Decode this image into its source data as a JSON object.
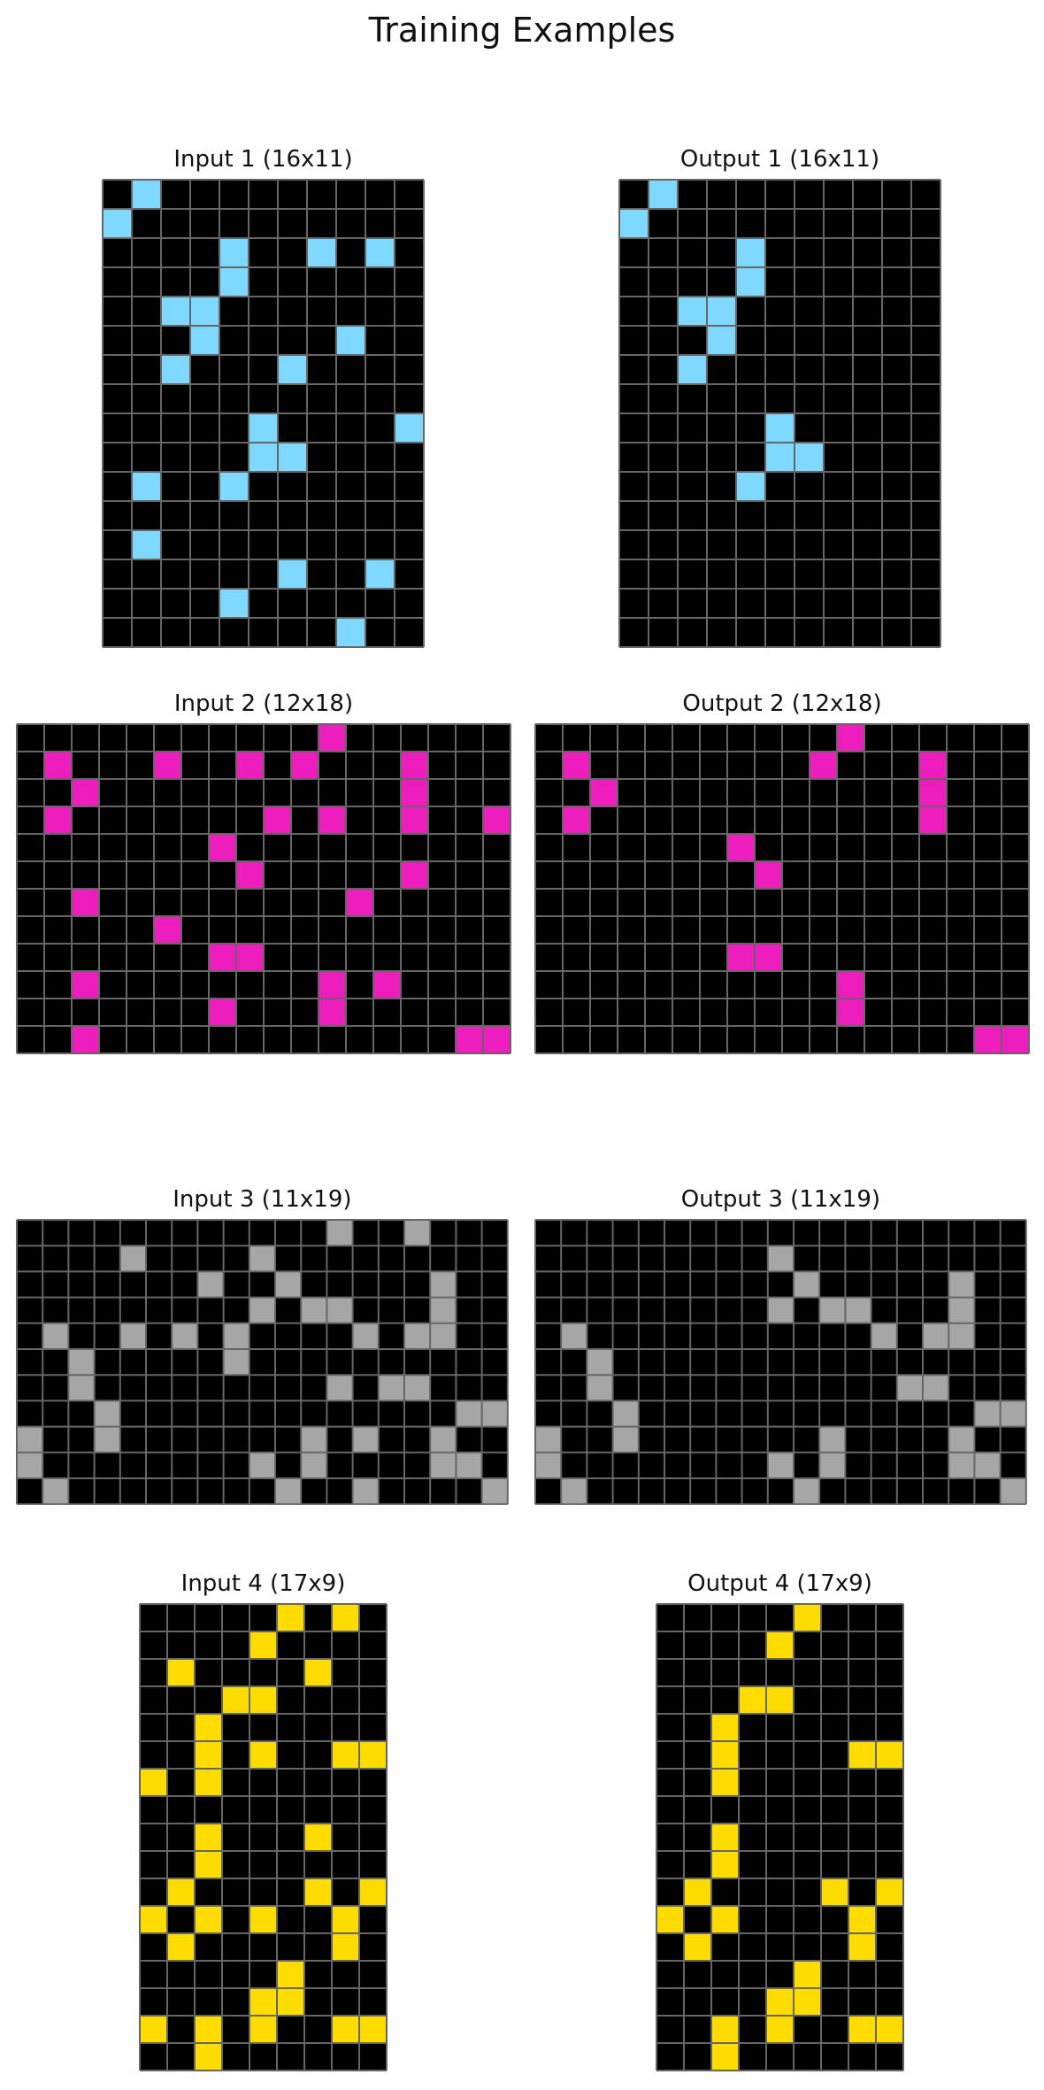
{
  "title": "Training Examples",
  "colors": {
    "background": "#000000",
    "gridline": "#666666",
    "cyan": "#7fd8ff",
    "magenta": "#ee1ebe",
    "gray": "#a6a6a6",
    "yellow": "#ffdc00"
  },
  "examples": [
    {
      "input": {
        "title": "Input 1 (16x11)",
        "rows": 16,
        "cols": 11,
        "color": "cyan",
        "cells": [
          [
            0,
            1
          ],
          [
            1,
            0
          ],
          [
            2,
            4
          ],
          [
            2,
            7
          ],
          [
            2,
            9
          ],
          [
            3,
            4
          ],
          [
            4,
            2
          ],
          [
            4,
            3
          ],
          [
            5,
            3
          ],
          [
            5,
            8
          ],
          [
            6,
            2
          ],
          [
            6,
            6
          ],
          [
            8,
            5
          ],
          [
            8,
            10
          ],
          [
            9,
            5
          ],
          [
            9,
            6
          ],
          [
            10,
            1
          ],
          [
            10,
            4
          ],
          [
            12,
            1
          ],
          [
            13,
            6
          ],
          [
            13,
            9
          ],
          [
            14,
            4
          ],
          [
            15,
            8
          ]
        ]
      },
      "output": {
        "title": "Output 1 (16x11)",
        "rows": 16,
        "cols": 11,
        "color": "cyan",
        "cells": [
          [
            0,
            1
          ],
          [
            1,
            0
          ],
          [
            2,
            4
          ],
          [
            3,
            4
          ],
          [
            4,
            2
          ],
          [
            4,
            3
          ],
          [
            5,
            3
          ],
          [
            6,
            2
          ],
          [
            8,
            5
          ],
          [
            9,
            5
          ],
          [
            9,
            6
          ],
          [
            10,
            4
          ]
        ]
      }
    },
    {
      "input": {
        "title": "Input 2 (12x18)",
        "rows": 12,
        "cols": 18,
        "color": "magenta",
        "cells": [
          [
            0,
            11
          ],
          [
            1,
            1
          ],
          [
            1,
            5
          ],
          [
            1,
            8
          ],
          [
            1,
            10
          ],
          [
            1,
            14
          ],
          [
            2,
            2
          ],
          [
            2,
            14
          ],
          [
            3,
            1
          ],
          [
            3,
            9
          ],
          [
            3,
            11
          ],
          [
            3,
            14
          ],
          [
            3,
            17
          ],
          [
            4,
            7
          ],
          [
            5,
            8
          ],
          [
            5,
            14
          ],
          [
            6,
            2
          ],
          [
            6,
            12
          ],
          [
            7,
            5
          ],
          [
            8,
            7
          ],
          [
            8,
            8
          ],
          [
            9,
            2
          ],
          [
            9,
            11
          ],
          [
            9,
            13
          ],
          [
            10,
            7
          ],
          [
            10,
            11
          ],
          [
            11,
            2
          ],
          [
            11,
            16
          ],
          [
            11,
            17
          ]
        ]
      },
      "output": {
        "title": "Output 2 (12x18)",
        "rows": 12,
        "cols": 18,
        "color": "magenta",
        "cells": [
          [
            0,
            11
          ],
          [
            1,
            1
          ],
          [
            1,
            10
          ],
          [
            1,
            14
          ],
          [
            2,
            2
          ],
          [
            2,
            14
          ],
          [
            3,
            1
          ],
          [
            3,
            14
          ],
          [
            4,
            7
          ],
          [
            5,
            8
          ],
          [
            8,
            7
          ],
          [
            8,
            8
          ],
          [
            9,
            11
          ],
          [
            10,
            11
          ],
          [
            11,
            16
          ],
          [
            11,
            17
          ]
        ]
      }
    },
    {
      "input": {
        "title": "Input 3 (11x19)",
        "rows": 11,
        "cols": 19,
        "color": "gray",
        "cells": [
          [
            0,
            12
          ],
          [
            0,
            15
          ],
          [
            1,
            4
          ],
          [
            1,
            9
          ],
          [
            2,
            7
          ],
          [
            2,
            10
          ],
          [
            2,
            16
          ],
          [
            3,
            9
          ],
          [
            3,
            11
          ],
          [
            3,
            12
          ],
          [
            3,
            16
          ],
          [
            4,
            1
          ],
          [
            4,
            4
          ],
          [
            4,
            6
          ],
          [
            4,
            8
          ],
          [
            4,
            13
          ],
          [
            4,
            15
          ],
          [
            4,
            16
          ],
          [
            5,
            2
          ],
          [
            5,
            8
          ],
          [
            6,
            2
          ],
          [
            6,
            12
          ],
          [
            6,
            14
          ],
          [
            6,
            15
          ],
          [
            7,
            3
          ],
          [
            7,
            17
          ],
          [
            7,
            18
          ],
          [
            8,
            0
          ],
          [
            8,
            3
          ],
          [
            8,
            11
          ],
          [
            8,
            13
          ],
          [
            8,
            16
          ],
          [
            9,
            0
          ],
          [
            9,
            9
          ],
          [
            9,
            11
          ],
          [
            9,
            16
          ],
          [
            9,
            17
          ],
          [
            10,
            1
          ],
          [
            10,
            10
          ],
          [
            10,
            13
          ],
          [
            10,
            18
          ]
        ]
      },
      "output": {
        "title": "Output 3 (11x19)",
        "rows": 11,
        "cols": 19,
        "color": "gray",
        "cells": [
          [
            1,
            9
          ],
          [
            2,
            10
          ],
          [
            2,
            16
          ],
          [
            3,
            9
          ],
          [
            3,
            11
          ],
          [
            3,
            12
          ],
          [
            3,
            16
          ],
          [
            4,
            1
          ],
          [
            4,
            13
          ],
          [
            4,
            15
          ],
          [
            4,
            16
          ],
          [
            5,
            2
          ],
          [
            6,
            2
          ],
          [
            6,
            14
          ],
          [
            6,
            15
          ],
          [
            7,
            3
          ],
          [
            7,
            17
          ],
          [
            7,
            18
          ],
          [
            8,
            0
          ],
          [
            8,
            3
          ],
          [
            8,
            11
          ],
          [
            8,
            16
          ],
          [
            9,
            0
          ],
          [
            9,
            9
          ],
          [
            9,
            11
          ],
          [
            9,
            16
          ],
          [
            9,
            17
          ],
          [
            10,
            1
          ],
          [
            10,
            10
          ],
          [
            10,
            18
          ]
        ]
      }
    },
    {
      "input": {
        "title": "Input 4 (17x9)",
        "rows": 17,
        "cols": 9,
        "color": "yellow",
        "cells": [
          [
            0,
            5
          ],
          [
            0,
            7
          ],
          [
            1,
            4
          ],
          [
            2,
            1
          ],
          [
            2,
            6
          ],
          [
            3,
            3
          ],
          [
            3,
            4
          ],
          [
            4,
            2
          ],
          [
            5,
            2
          ],
          [
            5,
            4
          ],
          [
            5,
            7
          ],
          [
            5,
            8
          ],
          [
            6,
            0
          ],
          [
            6,
            2
          ],
          [
            8,
            2
          ],
          [
            8,
            6
          ],
          [
            9,
            2
          ],
          [
            10,
            1
          ],
          [
            10,
            6
          ],
          [
            10,
            8
          ],
          [
            11,
            0
          ],
          [
            11,
            2
          ],
          [
            11,
            4
          ],
          [
            11,
            7
          ],
          [
            12,
            1
          ],
          [
            12,
            7
          ],
          [
            13,
            5
          ],
          [
            14,
            4
          ],
          [
            14,
            5
          ],
          [
            15,
            0
          ],
          [
            15,
            2
          ],
          [
            15,
            4
          ],
          [
            15,
            7
          ],
          [
            15,
            8
          ],
          [
            16,
            2
          ]
        ]
      },
      "output": {
        "title": "Output 4 (17x9)",
        "rows": 17,
        "cols": 9,
        "color": "yellow",
        "cells": [
          [
            0,
            5
          ],
          [
            1,
            4
          ],
          [
            3,
            3
          ],
          [
            3,
            4
          ],
          [
            4,
            2
          ],
          [
            5,
            2
          ],
          [
            5,
            7
          ],
          [
            5,
            8
          ],
          [
            6,
            2
          ],
          [
            8,
            2
          ],
          [
            9,
            2
          ],
          [
            10,
            1
          ],
          [
            10,
            6
          ],
          [
            10,
            8
          ],
          [
            11,
            0
          ],
          [
            11,
            2
          ],
          [
            11,
            7
          ],
          [
            12,
            1
          ],
          [
            12,
            7
          ],
          [
            13,
            5
          ],
          [
            14,
            4
          ],
          [
            14,
            5
          ],
          [
            15,
            2
          ],
          [
            15,
            4
          ],
          [
            15,
            7
          ],
          [
            15,
            8
          ],
          [
            16,
            2
          ]
        ]
      }
    }
  ]
}
